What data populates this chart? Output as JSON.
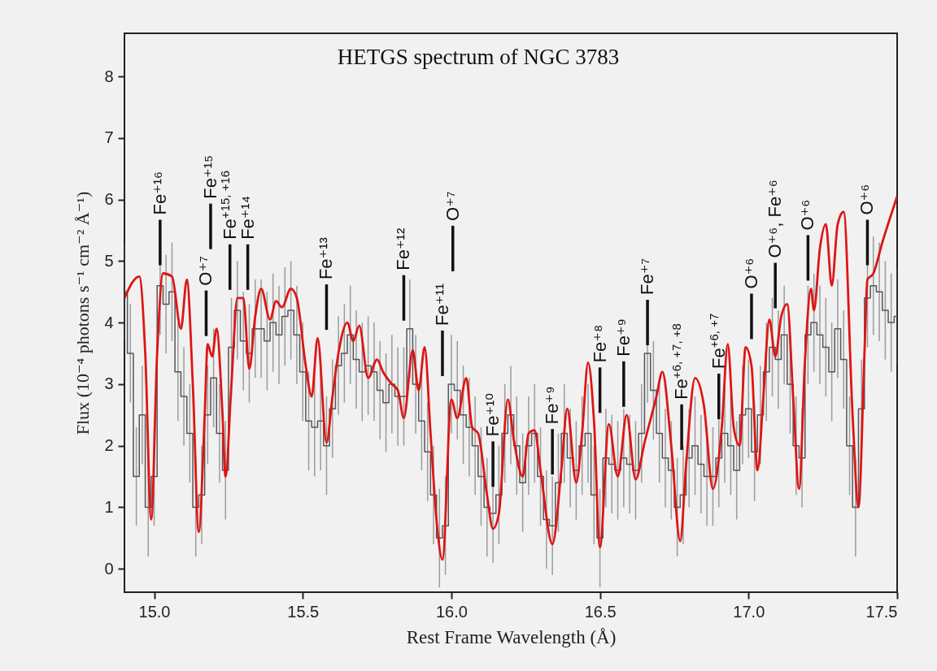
{
  "chart_data": {
    "type": "line",
    "title": "HETGS spectrum  of NGC 3783",
    "xlabel": "Rest Frame Wavelength (Å)",
    "ylabel": "Flux (10⁻⁴ photons s⁻¹ cm⁻² Å⁻¹)",
    "xlim": [
      14.9,
      17.5
    ],
    "ylim": [
      -0.38,
      8.7
    ],
    "xticks": [
      {
        "value": 15,
        "label": "15.0"
      },
      15.5,
      {
        "value": 16,
        "label": "16.0"
      },
      16.5,
      {
        "value": 17,
        "label": "17.0"
      },
      17.5
    ],
    "yticks": [
      0,
      1,
      2,
      3,
      4,
      5,
      6,
      7,
      8
    ],
    "series": [
      {
        "type": "step",
        "color": "#555555",
        "x": [
          14.9,
          14.92,
          14.94,
          14.96,
          14.98,
          15.0,
          15.02,
          15.04,
          15.06,
          15.08,
          15.1,
          15.12,
          15.14,
          15.16,
          15.18,
          15.2,
          15.22,
          15.24,
          15.26,
          15.28,
          15.3,
          15.32,
          15.34,
          15.36,
          15.38,
          15.4,
          15.42,
          15.44,
          15.46,
          15.48,
          15.5,
          15.52,
          15.54,
          15.56,
          15.58,
          15.6,
          15.62,
          15.64,
          15.66,
          15.68,
          15.7,
          15.72,
          15.74,
          15.76,
          15.78,
          15.8,
          15.82,
          15.84,
          15.86,
          15.88,
          15.9,
          15.92,
          15.94,
          15.96,
          15.98,
          16.0,
          16.02,
          16.04,
          16.06,
          16.08,
          16.1,
          16.12,
          16.14,
          16.16,
          16.18,
          16.2,
          16.22,
          16.24,
          16.26,
          16.28,
          16.3,
          16.32,
          16.34,
          16.36,
          16.38,
          16.4,
          16.42,
          16.44,
          16.46,
          16.48,
          16.5,
          16.52,
          16.54,
          16.56,
          16.58,
          16.6,
          16.62,
          16.64,
          16.66,
          16.68,
          16.7,
          16.72,
          16.74,
          16.76,
          16.78,
          16.8,
          16.82,
          16.84,
          16.86,
          16.88,
          16.9,
          16.92,
          16.94,
          16.96,
          16.98,
          17.0,
          17.02,
          17.04,
          17.06,
          17.08,
          17.1,
          17.12,
          17.14,
          17.16,
          17.18,
          17.2,
          17.22,
          17.24,
          17.26,
          17.28,
          17.3,
          17.32,
          17.34,
          17.36,
          17.38,
          17.4,
          17.42,
          17.44,
          17.46,
          17.48,
          17.5
        ],
        "values": [
          4.5,
          3.5,
          1.5,
          2.5,
          1.0,
          1.5,
          4.6,
          4.3,
          4.5,
          3.2,
          2.8,
          2.2,
          1.0,
          1.2,
          2.5,
          3.1,
          2.2,
          1.6,
          3.6,
          4.2,
          3.7,
          3.5,
          3.9,
          3.9,
          3.7,
          4.0,
          3.8,
          4.1,
          4.2,
          3.8,
          3.2,
          2.4,
          2.3,
          2.4,
          2.0,
          2.6,
          3.3,
          3.5,
          3.8,
          3.4,
          3.2,
          3.3,
          3.2,
          2.9,
          2.7,
          3.0,
          2.8,
          2.8,
          3.9,
          3.0,
          2.4,
          1.9,
          1.2,
          0.5,
          0.7,
          3.0,
          2.9,
          2.5,
          2.3,
          2.0,
          1.5,
          1.0,
          0.9,
          1.2,
          2.2,
          2.5,
          2.0,
          1.4,
          2.0,
          2.2,
          1.5,
          0.8,
          0.7,
          1.4,
          2.2,
          1.8,
          1.6,
          2.0,
          2.2,
          1.2,
          0.5,
          1.8,
          1.7,
          1.6,
          1.8,
          1.7,
          1.6,
          2.2,
          3.5,
          2.9,
          2.2,
          1.8,
          1.6,
          1.0,
          1.2,
          1.8,
          2.0,
          1.7,
          1.5,
          1.5,
          1.8,
          2.2,
          2.0,
          1.6,
          2.5,
          2.6,
          1.9,
          2.5,
          3.2,
          3.6,
          3.4,
          3.8,
          3.0,
          2.0,
          1.8,
          3.8,
          4.0,
          3.8,
          3.6,
          3.2,
          3.9,
          3.4,
          2.0,
          1.0,
          2.6,
          4.4,
          4.6,
          4.5,
          4.2,
          4.0,
          4.1
        ],
        "errors": [
          0.8,
          0.8,
          0.8,
          0.8,
          0.8,
          0.8,
          0.8,
          0.8,
          0.8,
          0.8,
          0.8,
          0.8,
          0.8,
          0.8,
          0.8,
          0.8,
          0.8,
          0.8,
          0.8,
          0.8,
          0.8,
          0.8,
          0.8,
          0.8,
          0.8,
          0.8,
          0.8,
          0.8,
          0.8,
          0.8,
          0.8,
          0.8,
          0.8,
          0.8,
          0.8,
          0.8,
          0.8,
          0.8,
          0.8,
          0.8,
          0.8,
          0.8,
          0.8,
          0.8,
          0.8,
          0.8,
          0.8,
          0.8,
          0.8,
          0.8,
          0.8,
          0.8,
          0.8,
          0.8,
          0.8,
          0.8,
          0.8,
          0.8,
          0.8,
          0.8,
          0.8,
          0.8,
          0.8,
          0.8,
          0.8,
          0.8,
          0.8,
          0.8,
          0.8,
          0.8,
          0.8,
          0.8,
          0.8,
          0.8,
          0.8,
          0.8,
          0.8,
          0.8,
          0.8,
          0.8,
          0.8,
          0.8,
          0.8,
          0.8,
          0.8,
          0.8,
          0.8,
          0.8,
          0.8,
          0.8,
          0.8,
          0.8,
          0.8,
          0.8,
          0.8,
          0.8,
          0.8,
          0.8,
          0.8,
          0.8,
          0.8,
          0.8,
          0.8,
          0.8,
          0.8,
          0.8,
          0.8,
          0.8,
          0.8,
          0.8,
          0.8,
          0.8,
          0.8,
          0.8,
          0.8,
          0.8,
          0.8,
          0.8,
          0.8,
          0.8,
          0.8,
          0.8,
          0.8,
          0.8,
          0.8,
          0.8,
          0.8,
          0.8,
          0.8,
          0.8,
          0.8
        ]
      },
      {
        "color": "#dd1515",
        "x": [
          14.9,
          14.95,
          14.97,
          14.99,
          15.01,
          15.03,
          15.06,
          15.09,
          15.11,
          15.13,
          15.15,
          15.17,
          15.18,
          15.195,
          15.21,
          15.23,
          15.24,
          15.26,
          15.28,
          15.3,
          15.32,
          15.34,
          15.36,
          15.39,
          15.41,
          15.43,
          15.46,
          15.48,
          15.51,
          15.53,
          15.55,
          15.58,
          15.6,
          15.62,
          15.65,
          15.67,
          15.69,
          15.72,
          15.75,
          15.77,
          15.8,
          15.82,
          15.84,
          15.87,
          15.89,
          15.91,
          15.93,
          15.95,
          15.97,
          16.0,
          16.02,
          16.05,
          16.07,
          16.09,
          16.12,
          16.14,
          16.16,
          16.19,
          16.21,
          16.24,
          16.26,
          16.28,
          16.3,
          16.34,
          16.37,
          16.39,
          16.42,
          16.44,
          16.46,
          16.48,
          16.5,
          16.53,
          16.56,
          16.59,
          16.62,
          16.65,
          16.69,
          16.71,
          16.74,
          16.77,
          16.79,
          16.82,
          16.85,
          16.88,
          16.91,
          16.93,
          16.95,
          16.97,
          16.99,
          17.01,
          17.03,
          17.05,
          17.07,
          17.09,
          17.11,
          17.13,
          17.15,
          17.17,
          17.19,
          17.21,
          17.22,
          17.24,
          17.26,
          17.28,
          17.3,
          17.32,
          17.35,
          17.37,
          17.39,
          17.4,
          17.42,
          17.45,
          17.5
        ],
        "values": [
          4.4,
          4.75,
          3.5,
          0.8,
          3.5,
          4.8,
          4.75,
          3.9,
          4.7,
          3.0,
          0.6,
          2.5,
          3.65,
          3.45,
          3.9,
          2.5,
          1.5,
          3.0,
          4.4,
          4.4,
          3.25,
          4.1,
          4.55,
          4.05,
          4.35,
          4.25,
          4.55,
          4.4,
          3.3,
          2.8,
          3.75,
          2.05,
          2.8,
          3.5,
          4.0,
          3.7,
          3.95,
          3.1,
          3.4,
          3.2,
          3.0,
          2.9,
          2.45,
          3.55,
          2.9,
          3.6,
          2.2,
          0.8,
          0.15,
          2.75,
          2.45,
          3.1,
          2.3,
          2.2,
          1.2,
          0.65,
          0.9,
          2.75,
          2.1,
          1.5,
          2.2,
          2.25,
          1.6,
          0.4,
          1.6,
          2.6,
          1.4,
          2.2,
          3.35,
          2.4,
          0.35,
          2.35,
          1.5,
          2.5,
          1.45,
          2.05,
          2.8,
          3.2,
          2.0,
          0.45,
          1.7,
          3.1,
          2.65,
          1.3,
          2.3,
          3.65,
          2.3,
          2.0,
          3.6,
          3.3,
          1.6,
          2.8,
          4.05,
          3.45,
          4.1,
          4.3,
          2.8,
          1.3,
          3.4,
          4.55,
          4.2,
          5.2,
          5.6,
          4.6,
          5.6,
          5.8,
          2.5,
          1.0,
          3.5,
          4.7,
          4.8,
          5.3,
          6.05
        ]
      }
    ],
    "annotations": [
      {
        "text": "Fe⁺¹⁶",
        "x": 15.02
      },
      {
        "text": "O⁺⁷",
        "x": 15.175
      },
      {
        "text": "Fe⁺¹⁵",
        "x": 15.19
      },
      {
        "text": "Fe$^{+15, +16}$",
        "x": 15.255
      },
      {
        "text": "Fe⁺¹⁴",
        "x": 15.315
      },
      {
        "text": "Fe⁺¹³",
        "x": 15.58
      },
      {
        "text": "Fe⁺¹²",
        "x": 15.84
      },
      {
        "text": "Fe⁺¹¹",
        "x": 15.97
      },
      {
        "text": "O⁺⁷",
        "x": 16.005
      },
      {
        "text": "Fe⁺¹⁰",
        "x": 16.14
      },
      {
        "text": "Fe⁺⁹",
        "x": 16.34
      },
      {
        "text": "Fe⁺⁸",
        "x": 16.5
      },
      {
        "text": "Fe⁺⁹",
        "x": 16.58
      },
      {
        "text": "Fe⁺⁷",
        "x": 16.66
      },
      {
        "text": "Fe$^{+6, +7, +8}$",
        "x": 16.775
      },
      {
        "text": "Fe$^{+6, +7}$",
        "x": 16.9
      },
      {
        "text": "O⁺⁶",
        "x": 17.01
      },
      {
        "text": "O⁺⁶, Fe⁺⁶",
        "x": 17.09
      },
      {
        "text": "O⁺⁶",
        "x": 17.2
      },
      {
        "text": "O⁺⁶",
        "x": 17.4
      }
    ]
  }
}
